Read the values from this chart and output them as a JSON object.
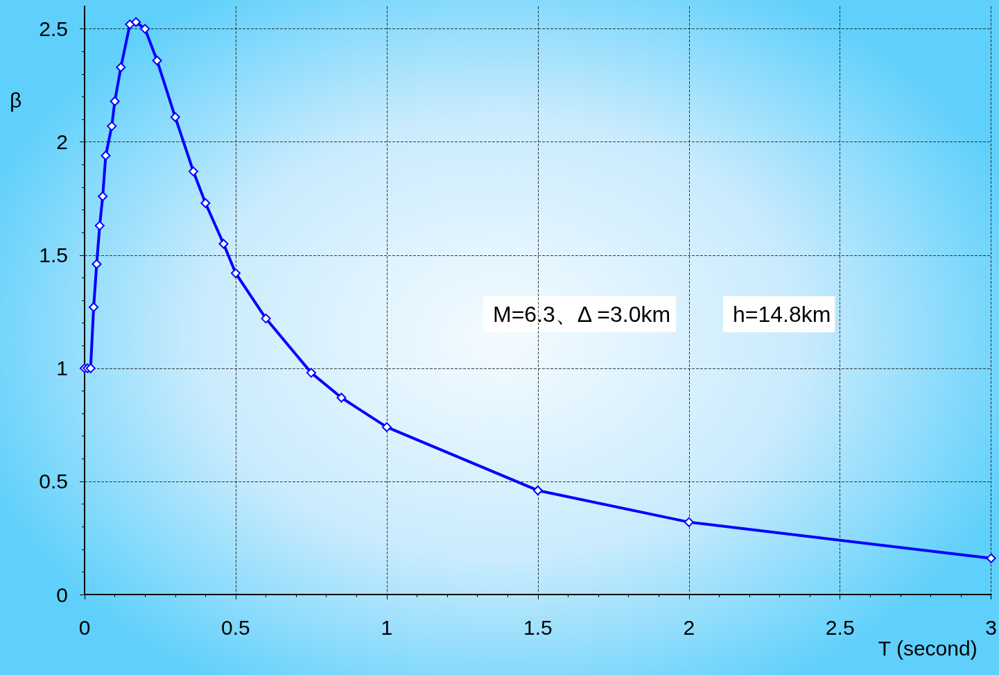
{
  "chart_data": {
    "type": "line",
    "xlabel": "T (second)",
    "ylabel": "β",
    "annotations": [
      "M=6.3、Δ =3.0km",
      "h=14.8km"
    ],
    "x": [
      0,
      0.01,
      0.02,
      0.03,
      0.04,
      0.05,
      0.06,
      0.07,
      0.09,
      0.1,
      0.12,
      0.15,
      0.17,
      0.2,
      0.24,
      0.3,
      0.36,
      0.4,
      0.46,
      0.5,
      0.6,
      0.75,
      0.85,
      1,
      1.5,
      2,
      3
    ],
    "series": [
      {
        "color": "#0000ff",
        "values": [
          1,
          1,
          1,
          1.27,
          1.46,
          1.63,
          1.76,
          1.94,
          2.07,
          2.18,
          2.33,
          2.52,
          2.53,
          2.5,
          2.36,
          2.11,
          1.87,
          1.73,
          1.55,
          1.42,
          1.22,
          0.98,
          0.87,
          0.74,
          0.46,
          0.32,
          0.16
        ]
      }
    ],
    "xlim": [
      0,
      3
    ],
    "xticks": [
      0,
      0.5,
      1,
      1.5,
      2,
      2.5,
      3
    ],
    "ylim": [
      0,
      2.6
    ],
    "yticks": [
      0,
      0.5,
      1,
      1.5,
      2,
      2.5
    ],
    "grid": true,
    "marker": "diamond",
    "line_style": "solid"
  }
}
